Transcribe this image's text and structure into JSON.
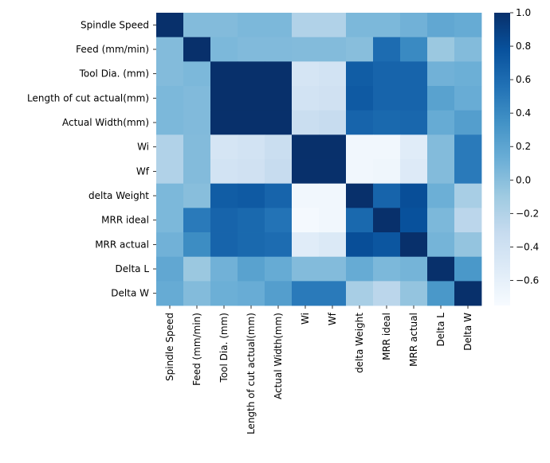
{
  "chart_data": {
    "type": "heatmap",
    "title": "",
    "xlabel": "",
    "ylabel": "",
    "labels": [
      "Spindle Speed",
      "Feed (mm/min)",
      "Tool Dia. (mm)",
      "Length of cut actual(mm)",
      "Actual Width(mm)",
      "Wi",
      "Wf",
      "delta Weight",
      "MRR ideal",
      "MRR actual",
      "Delta L",
      "Delta W"
    ],
    "matrix": [
      [
        1.0,
        0.02,
        0.02,
        0.05,
        0.05,
        -0.2,
        -0.2,
        0.05,
        0.05,
        0.1,
        0.18,
        0.15
      ],
      [
        0.02,
        1.0,
        0.05,
        0.03,
        0.03,
        0.02,
        0.02,
        0.0,
        0.6,
        0.4,
        -0.08,
        0.02
      ],
      [
        0.02,
        0.05,
        1.0,
        1.0,
        1.0,
        -0.45,
        -0.42,
        0.7,
        0.65,
        0.65,
        0.1,
        0.12
      ],
      [
        0.05,
        0.03,
        1.0,
        1.0,
        1.0,
        -0.42,
        -0.4,
        0.72,
        0.65,
        0.65,
        0.22,
        0.14
      ],
      [
        0.05,
        0.03,
        1.0,
        1.0,
        1.0,
        -0.35,
        -0.32,
        0.65,
        0.62,
        0.63,
        0.15,
        0.25
      ],
      [
        -0.2,
        0.02,
        -0.45,
        -0.42,
        -0.35,
        1.0,
        1.0,
        -0.7,
        -0.7,
        -0.55,
        0.02,
        0.5
      ],
      [
        -0.2,
        0.02,
        -0.42,
        -0.4,
        -0.32,
        1.0,
        1.0,
        -0.7,
        -0.68,
        -0.52,
        0.02,
        0.5
      ],
      [
        0.05,
        0.0,
        0.7,
        0.72,
        0.65,
        -0.7,
        -0.7,
        1.0,
        0.65,
        0.8,
        0.12,
        -0.15
      ],
      [
        0.05,
        0.5,
        0.65,
        0.62,
        0.55,
        -0.72,
        -0.7,
        0.62,
        1.0,
        0.78,
        0.05,
        -0.25
      ],
      [
        0.1,
        0.38,
        0.65,
        0.62,
        0.6,
        -0.55,
        -0.5,
        0.8,
        0.75,
        1.0,
        0.08,
        -0.05
      ],
      [
        0.18,
        -0.08,
        0.1,
        0.22,
        0.15,
        0.02,
        0.02,
        0.15,
        0.05,
        0.08,
        1.0,
        0.3
      ],
      [
        0.15,
        0.02,
        0.12,
        0.14,
        0.25,
        0.5,
        0.5,
        -0.15,
        -0.25,
        -0.05,
        0.3,
        1.0
      ]
    ],
    "vmin": -0.75,
    "vmax": 1.0,
    "colormap": "Blues",
    "colorbar_ticks": [
      "1.0",
      "0.8",
      "0.6",
      "0.4",
      "0.2",
      "0.0",
      "−0.2",
      "−0.4",
      "−0.6"
    ],
    "colorbar_tick_values": [
      1.0,
      0.8,
      0.6,
      0.4,
      0.2,
      0.0,
      -0.2,
      -0.4,
      -0.6
    ],
    "grid": false,
    "legend": "colorbar-right"
  }
}
